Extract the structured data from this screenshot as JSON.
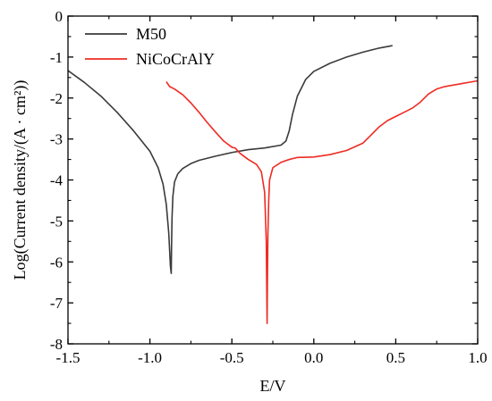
{
  "chart_data": {
    "type": "line",
    "title": "",
    "xlabel": "E/V",
    "ylabel": "Log(Current density/(A · cm²))",
    "xlim": [
      -1.5,
      1.0
    ],
    "ylim": [
      -8,
      0
    ],
    "x_ticks": [
      -1.5,
      -1.0,
      -0.5,
      0.0,
      0.5,
      1.0
    ],
    "x_tick_labels": [
      "-1.5",
      "-1.0",
      "-0.5",
      "0.0",
      "0.5",
      "1.0"
    ],
    "y_ticks": [
      0,
      -1,
      -2,
      -3,
      -4,
      -5,
      -6,
      -7,
      -8
    ],
    "y_tick_labels": [
      "0",
      "-1",
      "-2",
      "-3",
      "-4",
      "-5",
      "-6",
      "-7",
      "-8"
    ],
    "grid": false,
    "legend_position": "top-left",
    "series": [
      {
        "name": "M50",
        "color": "#3a3a3a",
        "points": [
          [
            -1.5,
            -1.33
          ],
          [
            -1.4,
            -1.62
          ],
          [
            -1.3,
            -1.95
          ],
          [
            -1.2,
            -2.35
          ],
          [
            -1.1,
            -2.8
          ],
          [
            -1.0,
            -3.3
          ],
          [
            -0.95,
            -3.7
          ],
          [
            -0.92,
            -4.1
          ],
          [
            -0.9,
            -4.6
          ],
          [
            -0.885,
            -5.3
          ],
          [
            -0.875,
            -6.1
          ],
          [
            -0.87,
            -6.28
          ],
          [
            -0.868,
            -5.6
          ],
          [
            -0.865,
            -4.9
          ],
          [
            -0.86,
            -4.4
          ],
          [
            -0.85,
            -4.05
          ],
          [
            -0.83,
            -3.85
          ],
          [
            -0.8,
            -3.72
          ],
          [
            -0.75,
            -3.6
          ],
          [
            -0.7,
            -3.52
          ],
          [
            -0.6,
            -3.42
          ],
          [
            -0.5,
            -3.33
          ],
          [
            -0.4,
            -3.26
          ],
          [
            -0.3,
            -3.22
          ],
          [
            -0.2,
            -3.15
          ],
          [
            -0.17,
            -3.05
          ],
          [
            -0.15,
            -2.8
          ],
          [
            -0.13,
            -2.4
          ],
          [
            -0.1,
            -1.95
          ],
          [
            -0.05,
            -1.55
          ],
          [
            0.0,
            -1.35
          ],
          [
            0.1,
            -1.15
          ],
          [
            0.2,
            -1.0
          ],
          [
            0.3,
            -0.88
          ],
          [
            0.4,
            -0.78
          ],
          [
            0.48,
            -0.72
          ]
        ]
      },
      {
        "name": "NiCoCrAlY",
        "color": "#ef2b23",
        "points": [
          [
            -0.9,
            -1.6
          ],
          [
            -0.88,
            -1.72
          ],
          [
            -0.85,
            -1.78
          ],
          [
            -0.8,
            -1.92
          ],
          [
            -0.75,
            -2.12
          ],
          [
            -0.7,
            -2.35
          ],
          [
            -0.65,
            -2.6
          ],
          [
            -0.6,
            -2.83
          ],
          [
            -0.55,
            -3.05
          ],
          [
            -0.5,
            -3.2
          ],
          [
            -0.48,
            -3.22
          ],
          [
            -0.45,
            -3.35
          ],
          [
            -0.4,
            -3.5
          ],
          [
            -0.35,
            -3.62
          ],
          [
            -0.32,
            -3.8
          ],
          [
            -0.3,
            -4.3
          ],
          [
            -0.29,
            -5.5
          ],
          [
            -0.285,
            -7.5
          ],
          [
            -0.283,
            -6.5
          ],
          [
            -0.28,
            -5.3
          ],
          [
            -0.275,
            -4.5
          ],
          [
            -0.27,
            -4.0
          ],
          [
            -0.25,
            -3.7
          ],
          [
            -0.2,
            -3.57
          ],
          [
            -0.15,
            -3.5
          ],
          [
            -0.1,
            -3.45
          ],
          [
            0.0,
            -3.44
          ],
          [
            0.1,
            -3.38
          ],
          [
            0.2,
            -3.28
          ],
          [
            0.3,
            -3.1
          ],
          [
            0.35,
            -2.9
          ],
          [
            0.4,
            -2.7
          ],
          [
            0.45,
            -2.55
          ],
          [
            0.5,
            -2.45
          ],
          [
            0.55,
            -2.35
          ],
          [
            0.6,
            -2.25
          ],
          [
            0.65,
            -2.1
          ],
          [
            0.7,
            -1.9
          ],
          [
            0.75,
            -1.78
          ],
          [
            0.8,
            -1.72
          ],
          [
            0.9,
            -1.65
          ],
          [
            1.0,
            -1.58
          ]
        ]
      }
    ]
  }
}
